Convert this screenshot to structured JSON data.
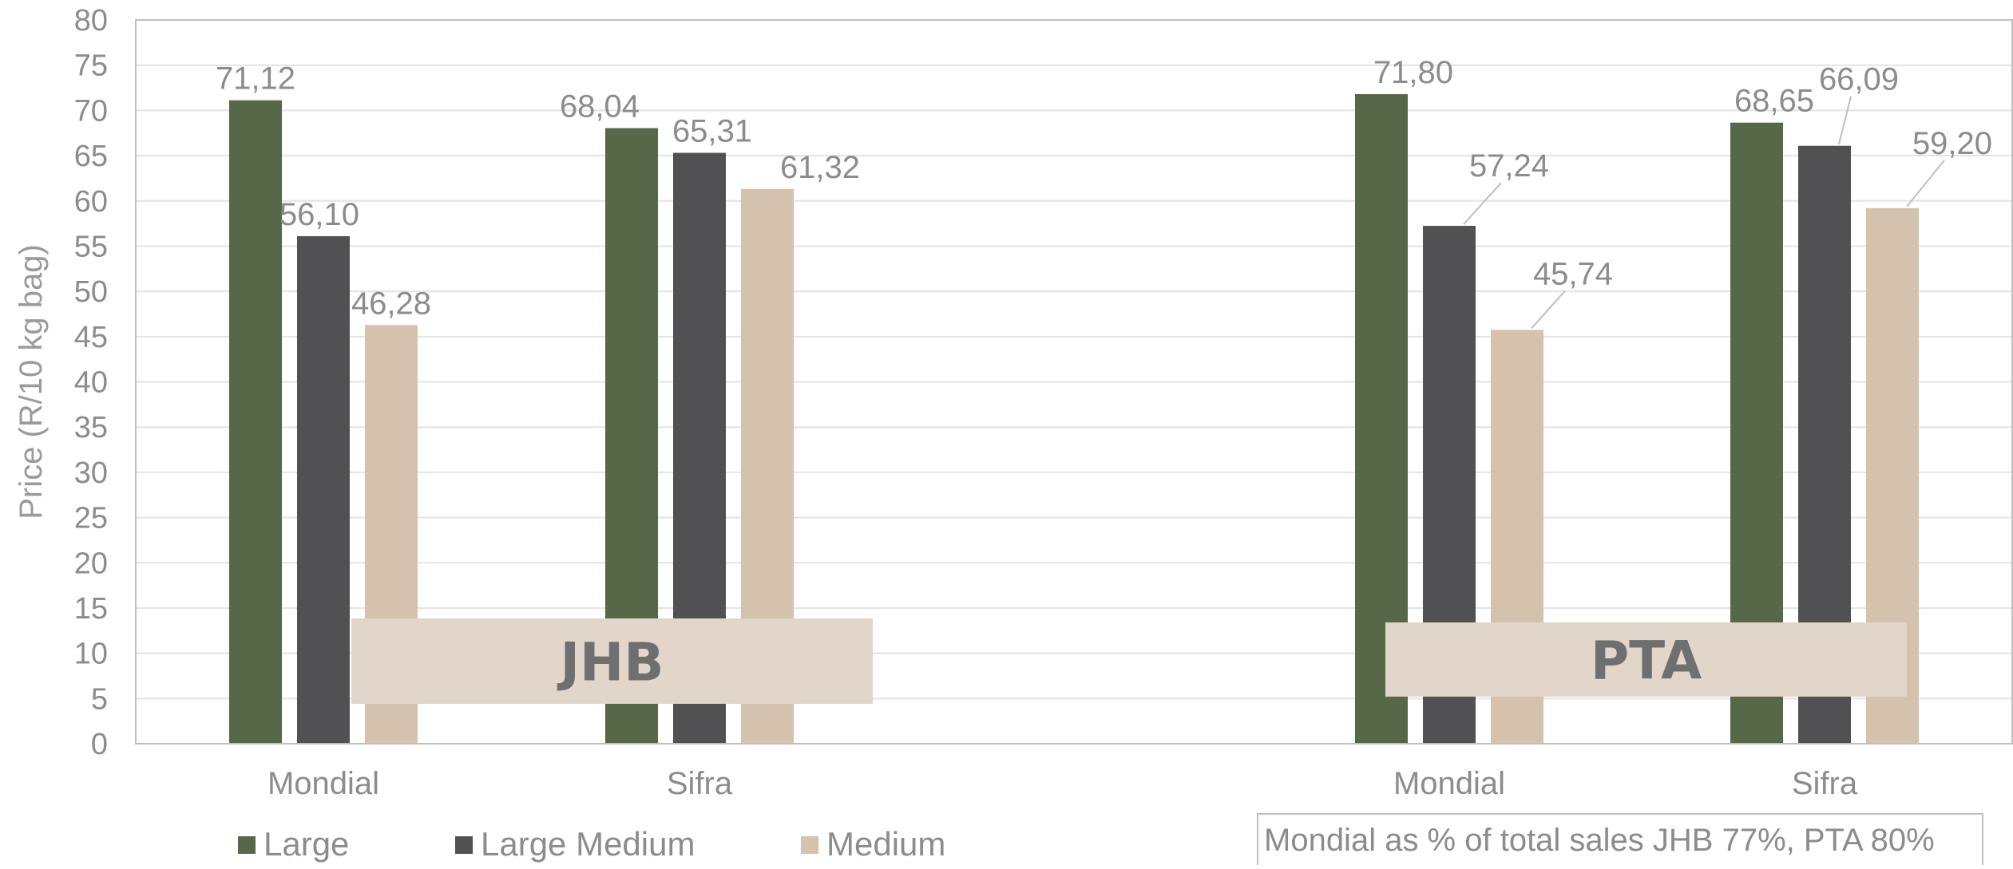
{
  "chart_data": {
    "type": "bar",
    "ylabel": "Price (R/10 kg bag)",
    "ylim": [
      0,
      80
    ],
    "ytick_step": 5,
    "grid": true,
    "legend_position": "bottom-left",
    "categories": [
      "Mondial",
      "Sifra",
      "Mondial",
      "Sifra"
    ],
    "groups": [
      {
        "label": "JHB",
        "categories": [
          0,
          1
        ]
      },
      {
        "label": "PTA",
        "categories": [
          2,
          3
        ]
      }
    ],
    "series": [
      {
        "name": "Large",
        "color": "#566848",
        "values": [
          71.12,
          68.04,
          71.8,
          68.65
        ],
        "labels": [
          "71,12",
          "68,04",
          "71,80",
          "68,65"
        ]
      },
      {
        "name": "Large Medium",
        "color": "#515153",
        "values": [
          56.1,
          65.31,
          57.24,
          66.09
        ],
        "labels": [
          "56,10",
          "65,31",
          "57,24",
          "66,09"
        ]
      },
      {
        "name": "Medium",
        "color": "#d4c2ad",
        "values": [
          46.28,
          61.32,
          45.74,
          59.2
        ],
        "labels": [
          "46,28",
          "61,32",
          "45,74",
          "59,20"
        ]
      }
    ],
    "annotation": "Mondial as % of total sales JHB 77%, PTA 80%"
  }
}
